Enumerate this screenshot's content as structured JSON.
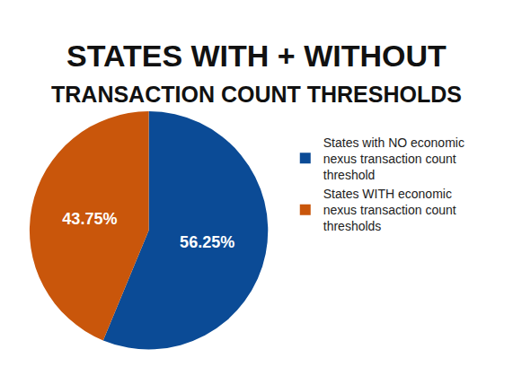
{
  "chart_data": {
    "type": "pie",
    "title": "STATES WITH + WITHOUT",
    "subtitle": "TRANSACTION COUNT THRESHOLDS",
    "categories": [
      "States with NO economic nexus transaction count threshold",
      "States WITH economic nexus transaction count thresholds"
    ],
    "values": [
      56.25,
      43.75
    ],
    "value_labels": [
      "56.25%",
      "43.75%"
    ],
    "colors": [
      "#0b4b96",
      "#c9560b"
    ],
    "data_labels": true,
    "legend": "right"
  }
}
